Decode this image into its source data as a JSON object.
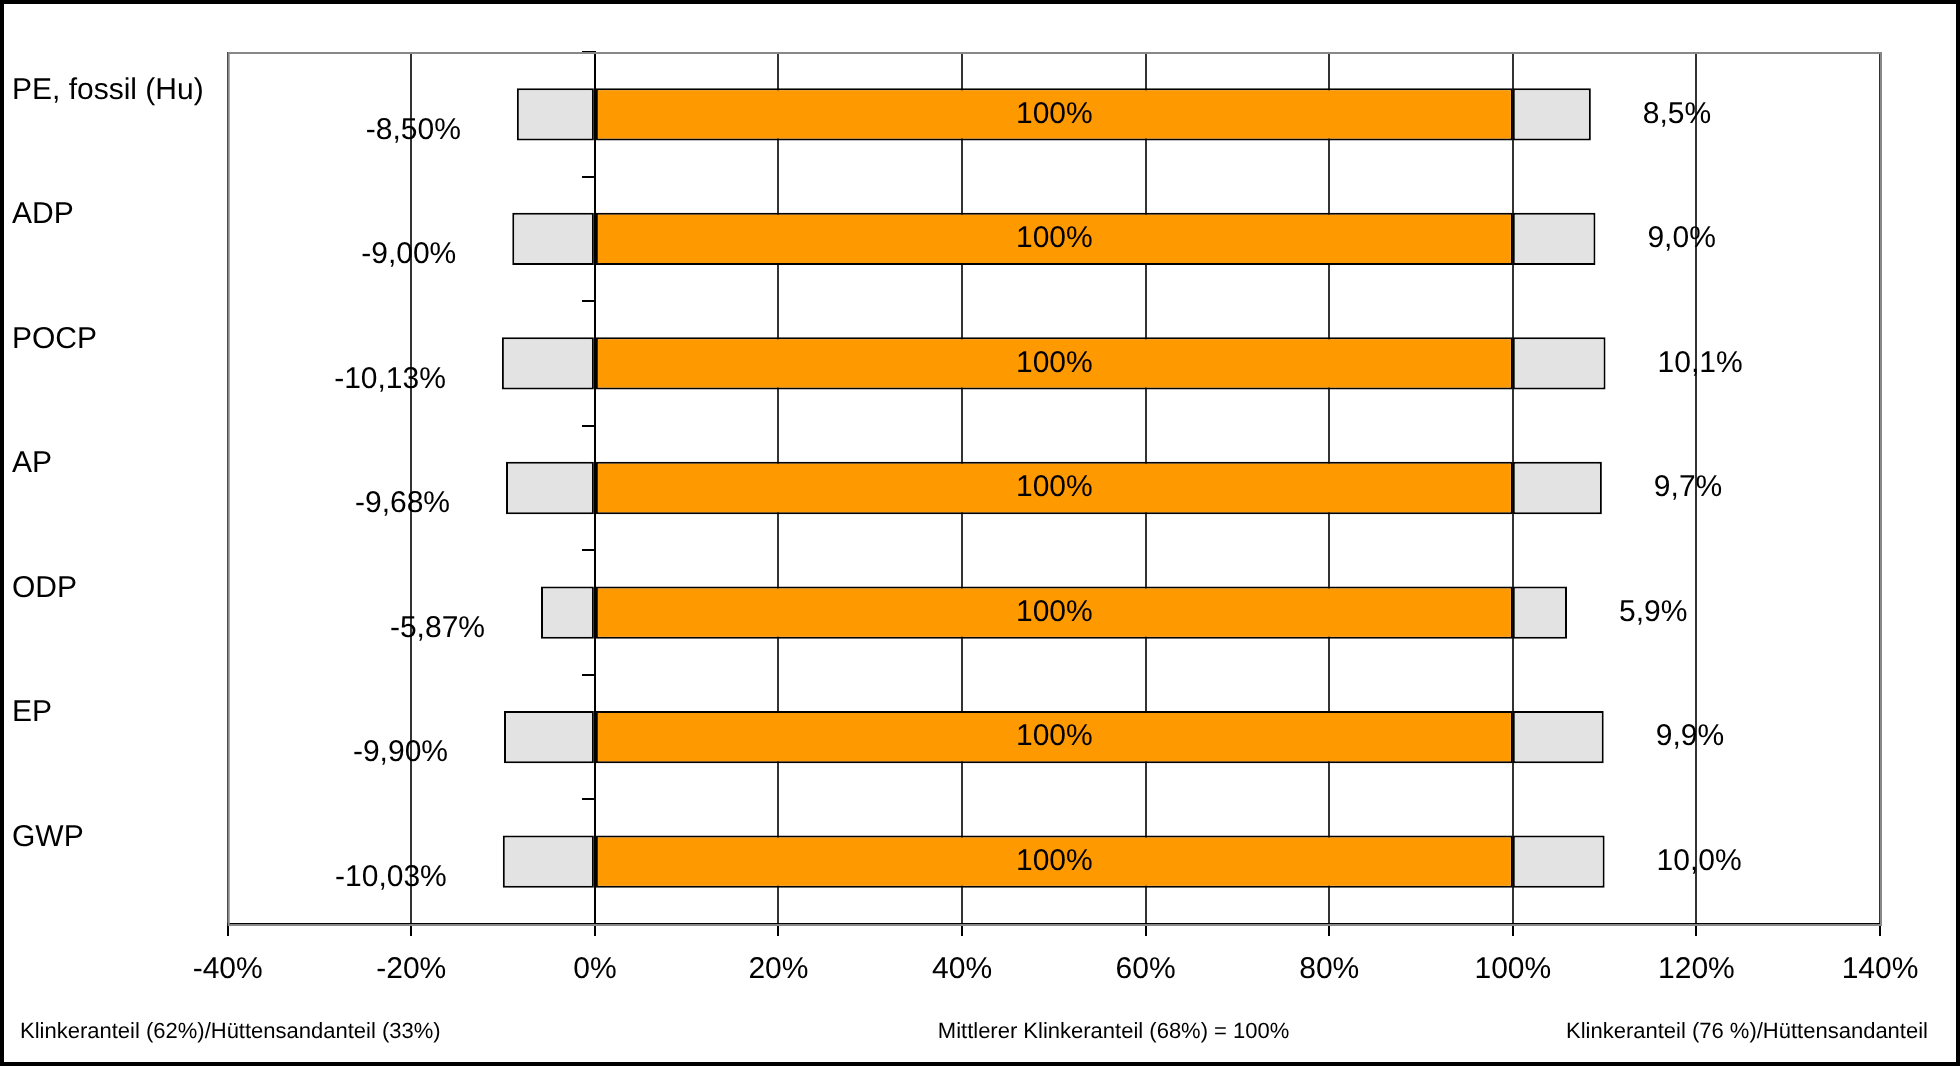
{
  "chart_data": {
    "type": "bar",
    "orientation": "horizontal",
    "stacked": true,
    "grid": "x",
    "categories": [
      "PE, fossil (Hu)",
      "ADP",
      "POCP",
      "AP",
      "ODP",
      "EP",
      "GWP"
    ],
    "series": [
      {
        "color": "#e3e3e3",
        "values": [
          -8.5,
          -9.0,
          -10.13,
          -9.68,
          -5.87,
          -9.9,
          -10.03
        ],
        "value_labels": [
          "-8,50%",
          "-9,00%",
          "-10,13%",
          "-9,68%",
          "-5,87%",
          "-9,90%",
          "-10,03%"
        ]
      },
      {
        "color": "#ff9900",
        "values": [
          100,
          100,
          100,
          100,
          100,
          100,
          100
        ],
        "value_labels": [
          "100%",
          "100%",
          "100%",
          "100%",
          "100%",
          "100%",
          "100%"
        ]
      },
      {
        "color": "#e3e3e3",
        "values": [
          8.5,
          9.0,
          10.1,
          9.7,
          5.9,
          9.9,
          10.0
        ],
        "value_labels": [
          "8,5%",
          "9,0%",
          "10,1%",
          "9,7%",
          "5,9%",
          "9,9%",
          "10,0%"
        ]
      }
    ],
    "xlim": [
      -40,
      140
    ],
    "xticks": [
      {
        "value": -40,
        "label": "-40%"
      },
      {
        "value": -20,
        "label": "-20%"
      },
      {
        "value": 0,
        "label": "0%"
      },
      {
        "value": 20,
        "label": "20%"
      },
      {
        "value": 40,
        "label": "40%"
      },
      {
        "value": 60,
        "label": "60%"
      },
      {
        "value": 80,
        "label": "80%"
      },
      {
        "value": 100,
        "label": "100%"
      },
      {
        "value": 120,
        "label": "120%"
      },
      {
        "value": 140,
        "label": "140%"
      }
    ],
    "annotations": [
      "Klinkeranteil (62%)/Hüttensandanteil (33%)",
      "Mittlerer Klinkeranteil (68%) = 100%",
      "Klinkeranteil (76 %)/Hüttensandanteil"
    ]
  }
}
